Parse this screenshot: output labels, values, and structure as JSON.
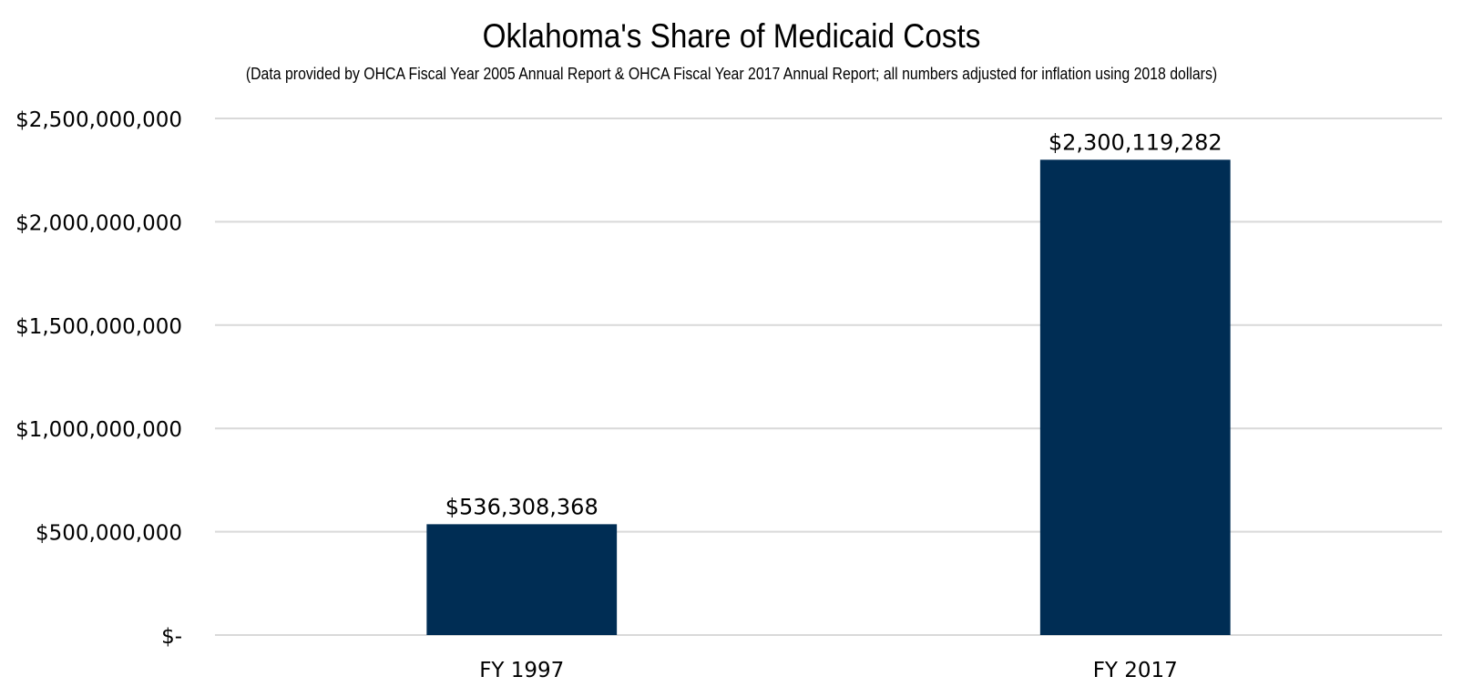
{
  "chart_data": {
    "type": "bar",
    "title": "Oklahoma's Share of Medicaid Costs",
    "subtitle": "(Data provided by OHCA Fiscal Year 2005 Annual Report & OHCA Fiscal Year 2017 Annual Report; all numbers adjusted for inflation using 2018 dollars)",
    "categories": [
      "FY 1997",
      "FY 2017"
    ],
    "values": [
      536308368,
      2300119282
    ],
    "data_labels": [
      "$536,308,368",
      "$2,300,119,282"
    ],
    "ylim": [
      0,
      2500000000
    ],
    "yticks": [
      0,
      500000000,
      1000000000,
      1500000000,
      2000000000,
      2500000000
    ],
    "ytick_labels": [
      "$-",
      "$500,000,000",
      "$1,000,000,000",
      "$1,500,000,000",
      "$2,000,000,000",
      "$2,500,000,000"
    ],
    "xlabel": "",
    "ylabel": "",
    "grid": true,
    "legend": "none",
    "bar_color": "#002D54",
    "grid_color": "#D9D9D9"
  }
}
